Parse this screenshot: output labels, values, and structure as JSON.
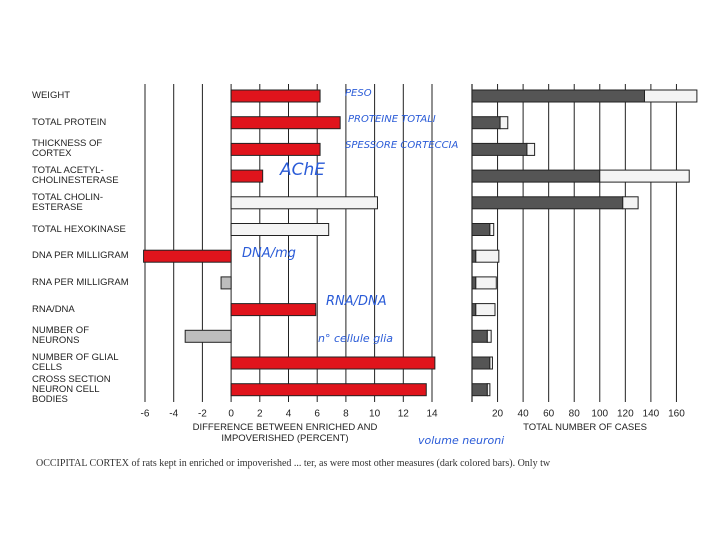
{
  "chart_data": [
    {
      "type": "hbar",
      "xlabel": "DIFFERENCE BETWEEN ENRICHED AND IMPOVERISHED (PERCENT)",
      "categories": [
        "WEIGHT",
        "TOTAL PROTEIN",
        "THICKNESS OF CORTEX",
        "TOTAL ACETYL-CHOLINESTERASE",
        "TOTAL CHOLIN-ESTERASE",
        "TOTAL HEXOKINASE",
        "DNA PER MILLIGRAM",
        "RNA PER MILLIGRAM",
        "RNA/DNA",
        "NUMBER OF NEURONS",
        "NUMBER OF GLIAL CELLS",
        "CROSS SECTION NEURON CELL BODIES"
      ],
      "values": [
        6.2,
        7.6,
        6.2,
        2.2,
        10.2,
        6.8,
        -6.1,
        -0.7,
        5.9,
        -3.2,
        14.2,
        13.6
      ],
      "colors": [
        "#e0141c",
        "#e0141c",
        "#e0141c",
        "#e0141c",
        "#f4f4f4",
        "#f4f4f4",
        "#e0141c",
        "#bdbdbd",
        "#e0141c",
        "#bdbdbd",
        "#e0141c",
        "#e0141c"
      ],
      "xlim": [
        -6,
        14
      ],
      "xticks": [
        -6,
        -4,
        -2,
        0,
        2,
        4,
        6,
        8,
        10,
        12,
        14
      ],
      "grid": true,
      "annotations": [
        "PESO",
        "PROTEINE TOTALI",
        "SPESSORE CORTECCIA",
        "AChE",
        "DNA/mg",
        "RNA/DNA",
        "n° cellule glia",
        "volume neuroni"
      ]
    },
    {
      "type": "stacked-hbar",
      "xlabel": "TOTAL NUMBER OF CASES",
      "series": [
        {
          "color": "#555555",
          "values": [
            135,
            22,
            43,
            100,
            118,
            14,
            3,
            3,
            3,
            12,
            14,
            12
          ]
        },
        {
          "color": "#f4f4f4",
          "values": [
            41,
            6,
            6,
            70,
            12,
            3,
            18,
            16,
            15,
            3,
            2,
            2
          ]
        }
      ],
      "xlim": [
        0,
        180
      ],
      "xticks": [
        20,
        40,
        60,
        80,
        100,
        120,
        140,
        160
      ],
      "grid": true
    }
  ],
  "caption": "OCCIPITAL CORTEX of rats kept in enriched or impoverished ... ter, as were most other measures (dark colored bars). Only tw"
}
